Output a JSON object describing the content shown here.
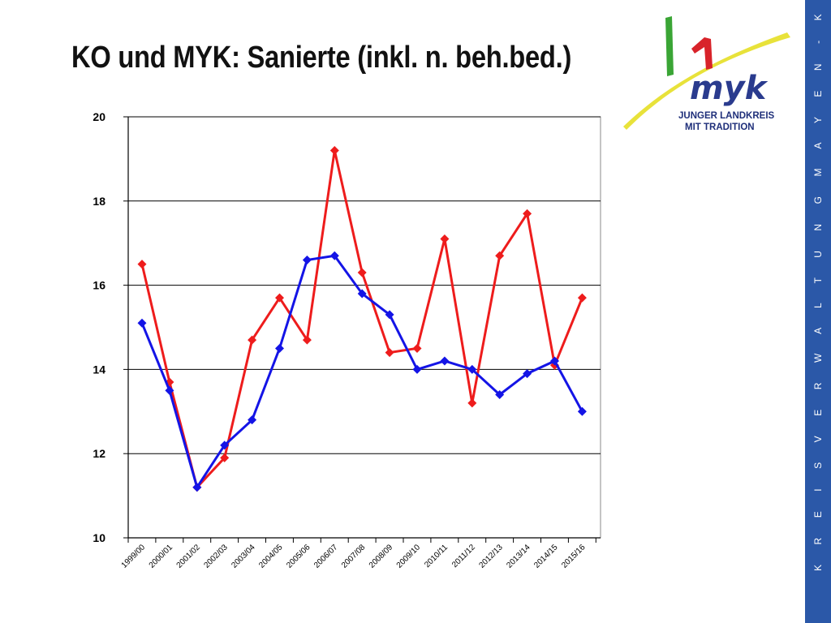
{
  "slide": {
    "title": "KO und MYK: Sanierte (inkl. n. beh.bed.)",
    "side_text": "K R E I S V E R W A L T U N G   M A Y E N - K O B L E N Z"
  },
  "logo": {
    "mark": "myk",
    "line1": "JUNGER LANDKREIS",
    "line2": "MIT TRADITION"
  },
  "colors": {
    "series_red": "#ee1c1c",
    "series_blue": "#1414e6",
    "side_band": "#2b58a8",
    "logo_green": "#3aa535",
    "logo_red": "#d8232a",
    "logo_yellow": "#e8e23a",
    "logo_blue": "#1f2f7a"
  },
  "chart_data": {
    "type": "line",
    "x": [
      "1999/00",
      "2000/01",
      "2001/02",
      "2002/03",
      "2003/04",
      "2004/05",
      "2005/06",
      "2006/07",
      "2007/08",
      "2008/09",
      "2009/10",
      "2010/11",
      "2011/12",
      "2012/13",
      "2013/14",
      "2014/15",
      "2015/16"
    ],
    "series": [
      {
        "color": "#ee1c1c",
        "marker": "diamond",
        "values": [
          16.5,
          13.7,
          11.2,
          11.9,
          14.7,
          15.7,
          14.7,
          19.2,
          16.3,
          14.4,
          14.5,
          17.1,
          13.2,
          16.7,
          17.7,
          14.1,
          15.7
        ]
      },
      {
        "color": "#1414e6",
        "marker": "diamond",
        "values": [
          15.1,
          13.5,
          11.2,
          12.2,
          12.8,
          14.5,
          16.6,
          16.7,
          15.8,
          15.3,
          14.0,
          14.2,
          14.0,
          13.4,
          13.9,
          14.2,
          13.0
        ]
      }
    ],
    "ylim": [
      10,
      20
    ],
    "yticks": [
      10,
      12,
      14,
      16,
      18,
      20
    ],
    "grid": "horizontal",
    "legend": "none"
  }
}
